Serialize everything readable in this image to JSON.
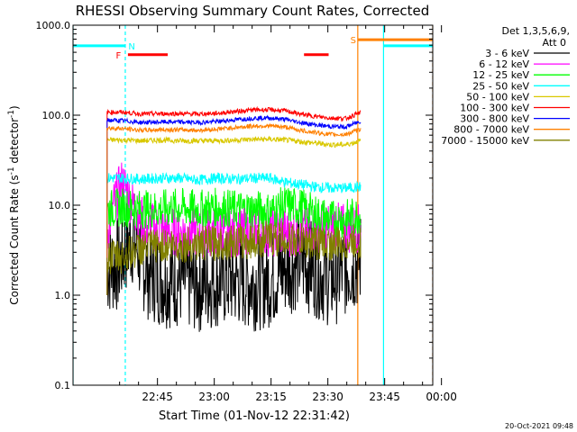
{
  "chart_data": {
    "type": "line",
    "title": "RHESSI Observing Summary Count Rates, Corrected",
    "ylabel_main": "Corrected Count Rate (s",
    "ylabel_sup": "-1",
    "ylabel_mid": " detector",
    "ylabel_sup2": "-1",
    "ylabel_end": ")",
    "xlabel": "Start Time (01-Nov-12 22:31:42)",
    "timestamp": "20-Oct-2021 09:48",
    "yscale": "log",
    "ylim": [
      0.1,
      1000
    ],
    "xlim_minutes": [
      22.0,
      117.0
    ],
    "y_ticks": [
      {
        "value": 0.1,
        "label": "0.1"
      },
      {
        "value": 1,
        "label": "1.0"
      },
      {
        "value": 10,
        "label": "10.0"
      },
      {
        "value": 100,
        "label": "100.0"
      },
      {
        "value": 1000,
        "label": "1000.0"
      }
    ],
    "x_ticks": [
      {
        "minute": 44.3,
        "label": "22:45"
      },
      {
        "minute": 59.3,
        "label": "23:00"
      },
      {
        "minute": 74.3,
        "label": "23:15"
      },
      {
        "minute": 89.3,
        "label": "23:30"
      },
      {
        "minute": 104.3,
        "label": "23:45"
      },
      {
        "minute": 119.3,
        "label": "00:00"
      }
    ],
    "legend": {
      "header1": "Det 1,3,5,6,9,",
      "header2": "Att 0",
      "placement": "top-right"
    },
    "series": [
      {
        "name": "3 - 6 keV",
        "color": "#000000",
        "points": [
          [
            31,
            2.0
          ],
          [
            34,
            2.2
          ],
          [
            36,
            3.5
          ],
          [
            38,
            4.5
          ],
          [
            40,
            2.5
          ],
          [
            42,
            1.8
          ],
          [
            46,
            1.5
          ],
          [
            50,
            1.5
          ],
          [
            55,
            1.3
          ],
          [
            60,
            1.5
          ],
          [
            65,
            1.5
          ],
          [
            70,
            1.4
          ],
          [
            74,
            1.5
          ],
          [
            78,
            2.0
          ],
          [
            82,
            2.5
          ],
          [
            86,
            2.0
          ],
          [
            90,
            1.5
          ],
          [
            94,
            2.0
          ],
          [
            98,
            2.5
          ]
        ]
      },
      {
        "name": "6 - 12 keV",
        "color": "#ff00ff",
        "points": [
          [
            31,
            5.0
          ],
          [
            33,
            11
          ],
          [
            35,
            18
          ],
          [
            37,
            12
          ],
          [
            39,
            8
          ],
          [
            41,
            6
          ],
          [
            45,
            5.5
          ],
          [
            50,
            5
          ],
          [
            55,
            5.0
          ],
          [
            60,
            5
          ],
          [
            65,
            5
          ],
          [
            70,
            5.5
          ],
          [
            74,
            5
          ],
          [
            78,
            5
          ],
          [
            82,
            5
          ],
          [
            86,
            5.5
          ],
          [
            90,
            6
          ],
          [
            94,
            5.5
          ],
          [
            98,
            5.5
          ]
        ]
      },
      {
        "name": "12 - 25 keV",
        "color": "#00ff00",
        "points": [
          [
            31,
            9.0
          ],
          [
            35,
            9.5
          ],
          [
            40,
            9.0
          ],
          [
            45,
            9.0
          ],
          [
            50,
            9.5
          ],
          [
            55,
            9.0
          ],
          [
            60,
            9.5
          ],
          [
            65,
            9.0
          ],
          [
            70,
            9.0
          ],
          [
            74,
            8.5
          ],
          [
            78,
            10.0
          ],
          [
            82,
            9.5
          ],
          [
            86,
            8.0
          ],
          [
            90,
            7.0
          ],
          [
            94,
            7.0
          ],
          [
            98,
            8.0
          ]
        ]
      },
      {
        "name": "25 - 50 keV",
        "color": "#00ffff",
        "points": [
          [
            31,
            20
          ],
          [
            35,
            20
          ],
          [
            40,
            19.5
          ],
          [
            45,
            20
          ],
          [
            50,
            20
          ],
          [
            55,
            19
          ],
          [
            60,
            20
          ],
          [
            65,
            19.5
          ],
          [
            70,
            20
          ],
          [
            74,
            20
          ],
          [
            78,
            18
          ],
          [
            82,
            17
          ],
          [
            86,
            16
          ],
          [
            90,
            15.5
          ],
          [
            94,
            15.5
          ],
          [
            98,
            16
          ]
        ]
      },
      {
        "name": "50 - 100 keV",
        "color": "#d9c800",
        "points": [
          [
            31,
            53
          ],
          [
            35,
            53
          ],
          [
            40,
            52
          ],
          [
            45,
            53
          ],
          [
            50,
            52
          ],
          [
            55,
            52
          ],
          [
            60,
            52
          ],
          [
            65,
            53
          ],
          [
            70,
            54
          ],
          [
            74,
            54
          ],
          [
            78,
            53
          ],
          [
            82,
            51
          ],
          [
            86,
            49
          ],
          [
            90,
            47
          ],
          [
            94,
            47
          ],
          [
            98,
            52
          ]
        ]
      },
      {
        "name": "100 - 300 keV",
        "color": "#ff0000",
        "points": [
          [
            31,
            108
          ],
          [
            35,
            108
          ],
          [
            40,
            103
          ],
          [
            45,
            104
          ],
          [
            50,
            104
          ],
          [
            55,
            103
          ],
          [
            60,
            105
          ],
          [
            65,
            110
          ],
          [
            70,
            115
          ],
          [
            74,
            115
          ],
          [
            78,
            112
          ],
          [
            82,
            103
          ],
          [
            86,
            97
          ],
          [
            90,
            93
          ],
          [
            94,
            92
          ],
          [
            98,
            107
          ]
        ]
      },
      {
        "name": "300 - 800 keV",
        "color": "#0000ff",
        "points": [
          [
            31,
            88
          ],
          [
            35,
            87
          ],
          [
            40,
            83
          ],
          [
            45,
            84
          ],
          [
            50,
            84
          ],
          [
            55,
            83
          ],
          [
            60,
            85
          ],
          [
            65,
            89
          ],
          [
            70,
            93
          ],
          [
            74,
            93
          ],
          [
            78,
            90
          ],
          [
            82,
            83
          ],
          [
            86,
            78
          ],
          [
            90,
            75
          ],
          [
            94,
            74
          ],
          [
            98,
            86
          ]
        ]
      },
      {
        "name": "800 - 7000 keV",
        "color": "#ff8000",
        "points": [
          [
            31,
            72
          ],
          [
            35,
            71
          ],
          [
            40,
            68
          ],
          [
            45,
            69
          ],
          [
            50,
            69
          ],
          [
            55,
            68
          ],
          [
            60,
            70
          ],
          [
            65,
            73
          ],
          [
            70,
            76
          ],
          [
            74,
            76
          ],
          [
            78,
            74
          ],
          [
            82,
            68
          ],
          [
            86,
            64
          ],
          [
            90,
            61
          ],
          [
            94,
            61
          ],
          [
            98,
            70
          ]
        ]
      },
      {
        "name": "7000 - 15000 keV",
        "color": "#808000",
        "points": [
          [
            31,
            2.6
          ],
          [
            35,
            2.7
          ],
          [
            40,
            3.3
          ],
          [
            45,
            3.6
          ],
          [
            50,
            3.6
          ],
          [
            55,
            3.7
          ],
          [
            60,
            3.8
          ],
          [
            65,
            3.9
          ],
          [
            70,
            4.0
          ],
          [
            74,
            4.3
          ],
          [
            78,
            4.2
          ],
          [
            82,
            4.0
          ],
          [
            86,
            3.9
          ],
          [
            90,
            3.7
          ],
          [
            94,
            3.7
          ],
          [
            98,
            4.0
          ]
        ]
      }
    ],
    "flags": [
      {
        "label": "N",
        "color": "#00ffff",
        "label_minute": 37.5,
        "segments": [
          [
            22.0,
            35.8
          ],
          [
            104.0,
            117.0
          ]
        ],
        "y": 590
      },
      {
        "label": "F",
        "color": "#ff0000",
        "label_minute": 34.0,
        "segments": [
          [
            36.5,
            47.0
          ],
          [
            83.0,
            89.5
          ]
        ],
        "y": 470
      },
      {
        "label": "S",
        "color": "#ff8000",
        "label_minute": 96.0,
        "segments": [
          [
            97.2,
            117.0
          ]
        ],
        "y": 690
      }
    ],
    "vertical_lines": [
      {
        "minute": 22.0,
        "color": "#00ffff",
        "style": "solid"
      },
      {
        "minute": 35.8,
        "color": "#00ffff",
        "style": "dashed"
      },
      {
        "minute": 97.2,
        "color": "#ff8000",
        "style": "solid"
      },
      {
        "minute": 104.0,
        "color": "#00ffff",
        "style": "solid"
      },
      {
        "minute": 117.0,
        "color": "#ff8000",
        "style": "dashed"
      }
    ]
  }
}
